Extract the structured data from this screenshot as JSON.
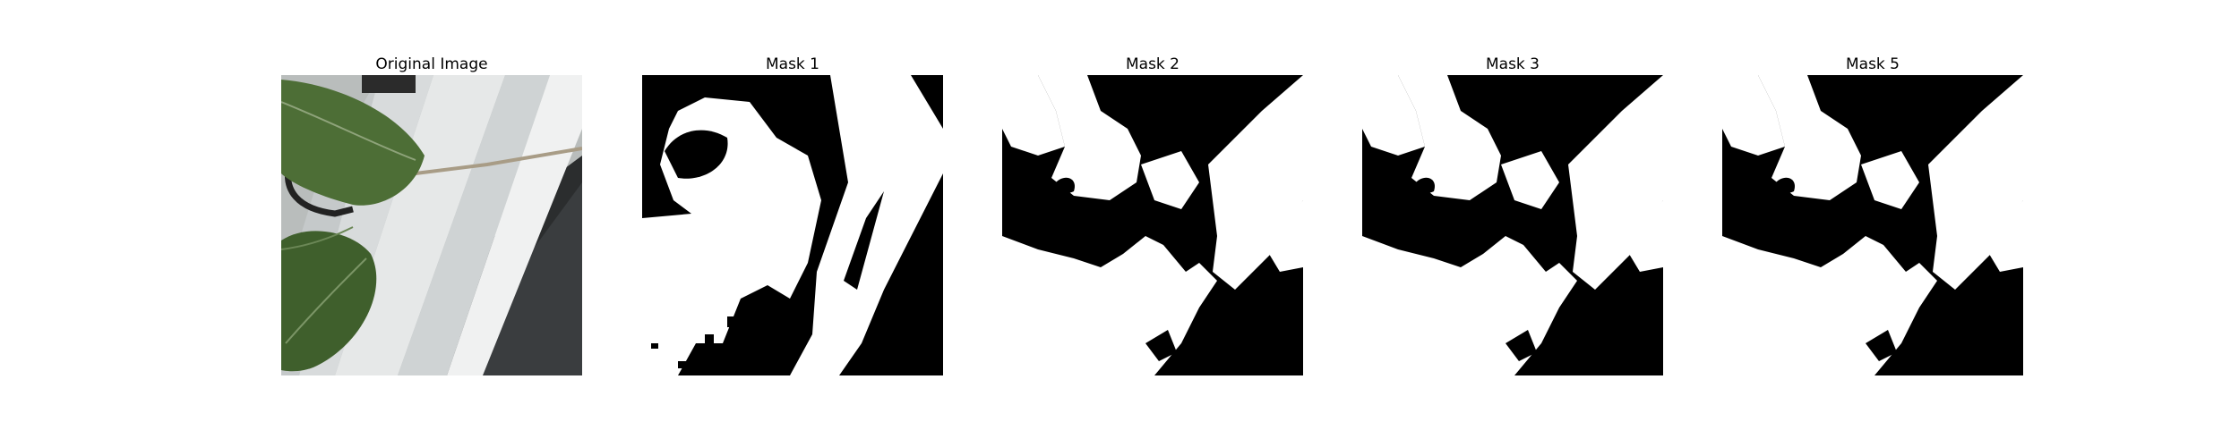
{
  "panels": [
    {
      "title": "Original Image",
      "kind": "photo"
    },
    {
      "title": "Mask 1",
      "kind": "mask",
      "variant": 1
    },
    {
      "title": "Mask 2",
      "kind": "mask",
      "variant": 2
    },
    {
      "title": "Mask 3",
      "kind": "mask",
      "variant": 3
    },
    {
      "title": "Mask 5",
      "kind": "mask",
      "variant": 5
    }
  ],
  "colors": {
    "mask_fg": "#ffffff",
    "mask_bg": "#000000",
    "leaf": "#4a6b35",
    "leaf_dark": "#2f4a22",
    "pipe": "#dcdfe0",
    "ground": "#3a3d3f"
  }
}
